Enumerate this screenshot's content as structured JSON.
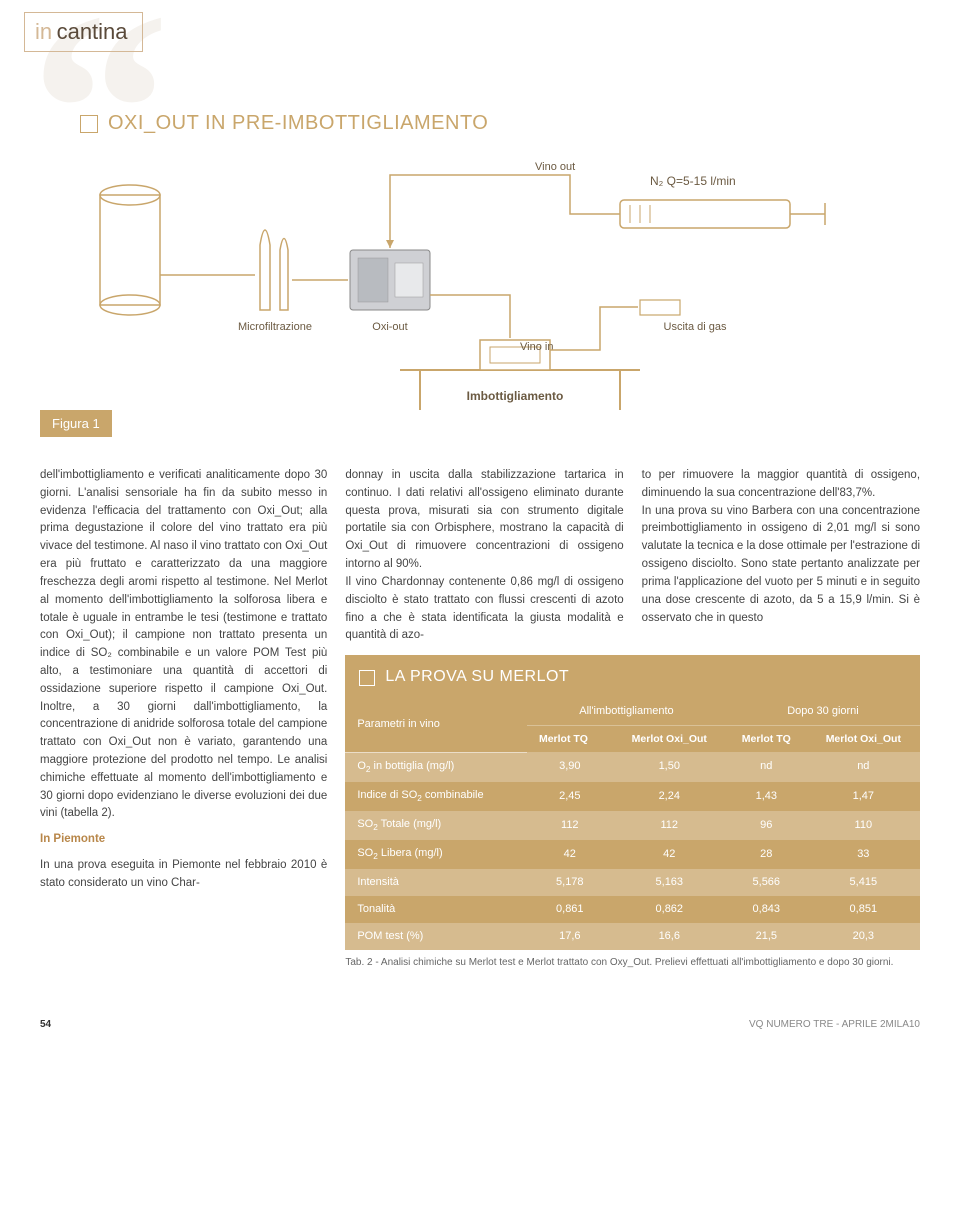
{
  "section": {
    "in": "in",
    "name": "cantina"
  },
  "diagram": {
    "title": "OXI_OUT IN PRE-IMBOTTIGLIAMENTO",
    "labels": {
      "vino_out": "Vino out",
      "n2": "N₂ Q=5-15 l/min",
      "microf": "Microfiltrazione",
      "oxiout": "Oxi-out",
      "uscita": "Uscita di gas",
      "vino_in": "Vino in",
      "imbott": "Imbottigliamento"
    },
    "figure_label": "Figura 1",
    "colors": {
      "stroke": "#c9a66b",
      "dark": "#6b5a42",
      "metal": "#cfd0d4"
    }
  },
  "body": {
    "col1_p1": "dell'imbottigliamento e verificati analiticamente dopo 30 giorni. L'analisi sensoriale ha fin da subito messo in evidenza l'efficacia del trattamento con Oxi_Out; alla prima degustazione il colore del vino trattato era più vivace del testimone. Al naso il vino trattato con Oxi_Out era più fruttato e caratterizzato da una maggiore freschezza degli aromi rispetto al testimone. Nel Merlot al momento dell'imbottigliamento la solforosa libera e totale è uguale in entrambe le tesi (testimone e trattato con Oxi_Out); il campione non trattato presenta un indice di SO₂ combinabile e un valore POM Test più alto, a testimoniare una quantità di accettori di ossidazione superiore rispetto il campione Oxi_Out. Inoltre, a 30 giorni dall'imbottigliamento, la concentrazione di anidride solforosa totale del campione trattato con Oxi_Out non è variato, garantendo una maggiore protezione del prodotto nel tempo. Le analisi chimiche effettuate al momento dell'imbottigliamento e 30 giorni dopo evidenziano le diverse evoluzioni dei due vini (tabella 2).",
    "col1_sub": "In Piemonte",
    "col1_p2": "In una prova eseguita in Piemonte nel febbraio 2010 è stato considerato un vino Char-",
    "col2_p1": "donnay in uscita dalla stabilizzazione tartarica in continuo. I dati relativi all'ossigeno eliminato durante questa prova, misurati sia con strumento digitale portatile sia con Orbisphere, mostrano la capacità di Oxi_Out di rimuovere concentrazioni di ossigeno intorno al 90%.",
    "col2_p2": "Il vino Chardonnay contenente 0,86 mg/l di ossigeno disciolto è stato trattato con flussi crescenti di azoto fino a che è stata identificata la giusta modalità e quantità di azo-",
    "col3_p1": "to per rimuovere la maggior quantità di ossigeno, diminuendo la sua concentrazione dell'83,7%.",
    "col3_p2": "In una prova su vino Barbera con una concentrazione preimbottigliamento in ossigeno di 2,01 mg/l si sono valutate la tecnica e la dose ottimale per l'estrazione di ossigeno disciolto. Sono state pertanto analizzate per prima l'applicazione del vuoto per 5 minuti e in seguito una dose crescente di azoto, da 5 a 15,9 l/min. Si è osservato che in questo"
  },
  "table": {
    "title": "LA PROVA SU MERLOT",
    "group_headers": {
      "param": "Parametri in vino",
      "g1": "All'imbottigliamento",
      "g2": "Dopo 30 giorni"
    },
    "sub_headers": [
      "Merlot TQ",
      "Merlot Oxi_Out",
      "Merlot TQ",
      "Merlot Oxi_Out"
    ],
    "rows": [
      {
        "label": "O₂ in bottiglia (mg/l)",
        "v": [
          "3,90",
          "1,50",
          "nd",
          "nd"
        ]
      },
      {
        "label": "Indice di SO₂ combinabile",
        "v": [
          "2,45",
          "2,24",
          "1,43",
          "1,47"
        ]
      },
      {
        "label": "SO₂ Totale (mg/l)",
        "v": [
          "112",
          "112",
          "96",
          "110"
        ]
      },
      {
        "label": "SO₂ Libera (mg/l)",
        "v": [
          "42",
          "42",
          "28",
          "33"
        ]
      },
      {
        "label": "Intensità",
        "v": [
          "5,178",
          "5,163",
          "5,566",
          "5,415"
        ]
      },
      {
        "label": "Tonalità",
        "v": [
          "0,861",
          "0,862",
          "0,843",
          "0,851"
        ]
      },
      {
        "label": "POM test (%)",
        "v": [
          "17,6",
          "16,6",
          "21,5",
          "20,3"
        ]
      }
    ],
    "caption": "Tab. 2 - Analisi chimiche su Merlot test e Merlot trattato con Oxy_Out. Prelievi effettuati all'imbottigliamento e dopo 30 giorni."
  },
  "footer": {
    "page": "54",
    "mag": "VQ NUMERO TRE - APRILE 2MILA10"
  }
}
